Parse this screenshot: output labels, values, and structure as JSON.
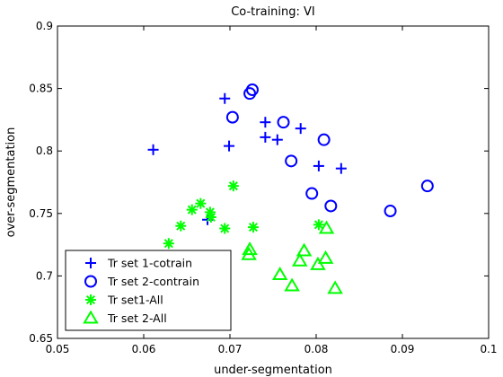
{
  "chart_data": {
    "type": "scatter",
    "title": "Co-training: VI",
    "xlabel": "under-segmentation",
    "ylabel": "over-segmentation",
    "xlim": [
      0.05,
      0.1
    ],
    "ylim": [
      0.65,
      0.9
    ],
    "xticks": [
      0.05,
      0.06,
      0.07,
      0.08,
      0.09,
      0.1
    ],
    "xtick_labels": [
      "0.05",
      "0.06",
      "0.07",
      "0.08",
      "0.09",
      "0.1"
    ],
    "yticks": [
      0.65,
      0.7,
      0.75,
      0.8,
      0.85,
      0.9
    ],
    "ytick_labels": [
      "0.65",
      "0.7",
      "0.75",
      "0.8",
      "0.85",
      "0.9"
    ],
    "grid": false,
    "legend_position": "bottom-left",
    "series": [
      {
        "name": "Tr set 1-cotrain",
        "marker": "plus",
        "color": "#0000ff",
        "points": [
          [
            0.0611,
            0.801
          ],
          [
            0.0694,
            0.842
          ],
          [
            0.0699,
            0.804
          ],
          [
            0.0741,
            0.823
          ],
          [
            0.0741,
            0.811
          ],
          [
            0.0755,
            0.809
          ],
          [
            0.0782,
            0.818
          ],
          [
            0.0803,
            0.788
          ],
          [
            0.0829,
            0.786
          ],
          [
            0.0674,
            0.745
          ]
        ]
      },
      {
        "name": "Tr set 2-contrain",
        "marker": "circle",
        "color": "#0000ff",
        "points": [
          [
            0.0726,
            0.849
          ],
          [
            0.0723,
            0.846
          ],
          [
            0.0703,
            0.827
          ],
          [
            0.0762,
            0.823
          ],
          [
            0.0809,
            0.809
          ],
          [
            0.0771,
            0.792
          ],
          [
            0.0795,
            0.766
          ],
          [
            0.0817,
            0.756
          ],
          [
            0.0886,
            0.752
          ],
          [
            0.0929,
            0.772
          ]
        ]
      },
      {
        "name": "Tr set1-All",
        "marker": "asterisk",
        "color": "#00ff00",
        "points": [
          [
            0.0704,
            0.772
          ],
          [
            0.0666,
            0.758
          ],
          [
            0.0656,
            0.753
          ],
          [
            0.0677,
            0.751
          ],
          [
            0.0678,
            0.747
          ],
          [
            0.0643,
            0.74
          ],
          [
            0.0694,
            0.738
          ],
          [
            0.0727,
            0.739
          ],
          [
            0.0629,
            0.726
          ],
          [
            0.0803,
            0.741
          ]
        ]
      },
      {
        "name": "Tr set 2-All",
        "marker": "triangle",
        "color": "#00ff00",
        "points": [
          [
            0.0723,
            0.721
          ],
          [
            0.0722,
            0.717
          ],
          [
            0.0786,
            0.72
          ],
          [
            0.0812,
            0.738
          ],
          [
            0.0781,
            0.712
          ],
          [
            0.0758,
            0.701
          ],
          [
            0.0772,
            0.692
          ],
          [
            0.0802,
            0.709
          ],
          [
            0.0811,
            0.714
          ],
          [
            0.0822,
            0.69
          ]
        ]
      }
    ]
  }
}
